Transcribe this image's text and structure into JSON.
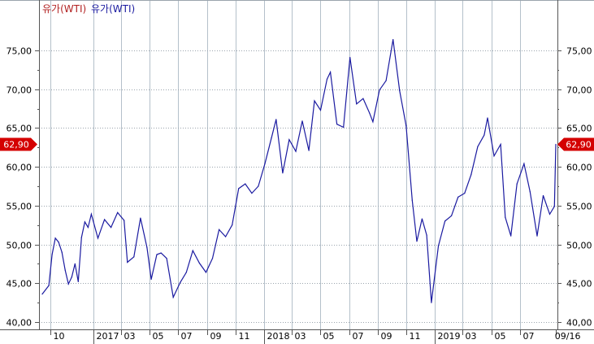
{
  "legend": [
    {
      "label": "유가(WTI)",
      "color": "#b22222"
    },
    {
      "label": "유가(WTI)",
      "color": "#1a1aa0"
    }
  ],
  "chart_data": {
    "type": "line",
    "title": "",
    "xlabel": "",
    "ylabel": "",
    "ylim": [
      40,
      77
    ],
    "grid": true,
    "y_ticks": [
      "40,00",
      "45,00",
      "50,00",
      "55,00",
      "60,00",
      "65,00",
      "70,00",
      "75,00"
    ],
    "y_tick_values": [
      40,
      45,
      50,
      55,
      60,
      65,
      70,
      75
    ],
    "x_ticks": [
      {
        "label": "10",
        "date": "2016-10-01"
      },
      {
        "label": "2017",
        "date": "2017-01-01",
        "year": true
      },
      {
        "label": "03",
        "date": "2017-03-01"
      },
      {
        "label": "05",
        "date": "2017-05-01"
      },
      {
        "label": "07",
        "date": "2017-07-01"
      },
      {
        "label": "09",
        "date": "2017-09-01"
      },
      {
        "label": "11",
        "date": "2017-11-01"
      },
      {
        "label": "2018",
        "date": "2018-01-01",
        "year": true
      },
      {
        "label": "03",
        "date": "2018-03-01"
      },
      {
        "label": "05",
        "date": "2018-05-01"
      },
      {
        "label": "07",
        "date": "2018-07-01"
      },
      {
        "label": "09",
        "date": "2018-09-01"
      },
      {
        "label": "11",
        "date": "2018-11-01"
      },
      {
        "label": "2019",
        "date": "2019-01-01",
        "year": true
      },
      {
        "label": "03",
        "date": "2019-03-01"
      },
      {
        "label": "05",
        "date": "2019-05-01"
      },
      {
        "label": "07",
        "date": "2019-07-01"
      },
      {
        "label": "09/16",
        "date": "2019-09-16"
      }
    ],
    "last_value_label": "62,90",
    "last_value": 62.9,
    "marker_color": "#d40000",
    "line_color": "#1a1aa0",
    "series": [
      {
        "points": [
          [
            "2016-09-13",
            43.6
          ],
          [
            "2016-09-27",
            44.7
          ],
          [
            "2016-10-04",
            48.7
          ],
          [
            "2016-10-11",
            50.8
          ],
          [
            "2016-10-18",
            50.3
          ],
          [
            "2016-10-25",
            49.0
          ],
          [
            "2016-11-01",
            46.7
          ],
          [
            "2016-11-08",
            44.9
          ],
          [
            "2016-11-15",
            45.8
          ],
          [
            "2016-11-22",
            47.5
          ],
          [
            "2016-11-29",
            45.2
          ],
          [
            "2016-12-06",
            50.9
          ],
          [
            "2016-12-13",
            52.9
          ],
          [
            "2016-12-20",
            52.2
          ],
          [
            "2016-12-27",
            53.9
          ],
          [
            "2017-01-10",
            50.8
          ],
          [
            "2017-01-24",
            53.2
          ],
          [
            "2017-02-07",
            52.2
          ],
          [
            "2017-02-21",
            54.1
          ],
          [
            "2017-03-07",
            53.1
          ],
          [
            "2017-03-14",
            47.7
          ],
          [
            "2017-03-28",
            48.4
          ],
          [
            "2017-04-11",
            53.4
          ],
          [
            "2017-04-25",
            49.6
          ],
          [
            "2017-05-04",
            45.5
          ],
          [
            "2017-05-16",
            48.7
          ],
          [
            "2017-05-25",
            48.9
          ],
          [
            "2017-06-06",
            48.2
          ],
          [
            "2017-06-20",
            43.2
          ],
          [
            "2017-07-05",
            45.1
          ],
          [
            "2017-07-18",
            46.4
          ],
          [
            "2017-08-01",
            49.2
          ],
          [
            "2017-08-15",
            47.6
          ],
          [
            "2017-08-29",
            46.4
          ],
          [
            "2017-09-12",
            48.2
          ],
          [
            "2017-09-26",
            51.9
          ],
          [
            "2017-10-10",
            51.0
          ],
          [
            "2017-10-24",
            52.5
          ],
          [
            "2017-11-07",
            57.2
          ],
          [
            "2017-11-21",
            57.8
          ],
          [
            "2017-12-05",
            56.6
          ],
          [
            "2017-12-19",
            57.5
          ],
          [
            "2018-01-02",
            60.4
          ],
          [
            "2018-01-16",
            63.7
          ],
          [
            "2018-01-26",
            66.1
          ],
          [
            "2018-02-09",
            59.2
          ],
          [
            "2018-02-23",
            63.5
          ],
          [
            "2018-03-09",
            62.0
          ],
          [
            "2018-03-23",
            65.9
          ],
          [
            "2018-04-06",
            62.1
          ],
          [
            "2018-04-18",
            68.5
          ],
          [
            "2018-05-01",
            67.3
          ],
          [
            "2018-05-15",
            71.3
          ],
          [
            "2018-05-22",
            72.2
          ],
          [
            "2018-06-05",
            65.5
          ],
          [
            "2018-06-19",
            65.1
          ],
          [
            "2018-07-03",
            74.1
          ],
          [
            "2018-07-17",
            68.1
          ],
          [
            "2018-07-31",
            68.8
          ],
          [
            "2018-08-14",
            66.9
          ],
          [
            "2018-08-21",
            65.8
          ],
          [
            "2018-09-04",
            69.9
          ],
          [
            "2018-09-18",
            71.1
          ],
          [
            "2018-10-03",
            76.4
          ],
          [
            "2018-10-17",
            69.8
          ],
          [
            "2018-10-31",
            65.3
          ],
          [
            "2018-11-13",
            55.7
          ],
          [
            "2018-11-23",
            50.4
          ],
          [
            "2018-12-04",
            53.3
          ],
          [
            "2018-12-14",
            51.2
          ],
          [
            "2018-12-24",
            42.5
          ],
          [
            "2019-01-08",
            49.8
          ],
          [
            "2019-01-22",
            53.0
          ],
          [
            "2019-02-05",
            53.7
          ],
          [
            "2019-02-19",
            56.1
          ],
          [
            "2019-03-05",
            56.6
          ],
          [
            "2019-03-19",
            59.0
          ],
          [
            "2019-04-02",
            62.6
          ],
          [
            "2019-04-16",
            64.1
          ],
          [
            "2019-04-23",
            66.3
          ],
          [
            "2019-05-07",
            61.4
          ],
          [
            "2019-05-21",
            62.9
          ],
          [
            "2019-05-31",
            53.5
          ],
          [
            "2019-06-12",
            51.1
          ],
          [
            "2019-06-25",
            57.8
          ],
          [
            "2019-07-10",
            60.4
          ],
          [
            "2019-07-23",
            56.8
          ],
          [
            "2019-08-07",
            51.1
          ],
          [
            "2019-08-20",
            56.3
          ],
          [
            "2019-09-03",
            53.9
          ],
          [
            "2019-09-13",
            54.9
          ],
          [
            "2019-09-16",
            62.9
          ]
        ]
      }
    ]
  }
}
